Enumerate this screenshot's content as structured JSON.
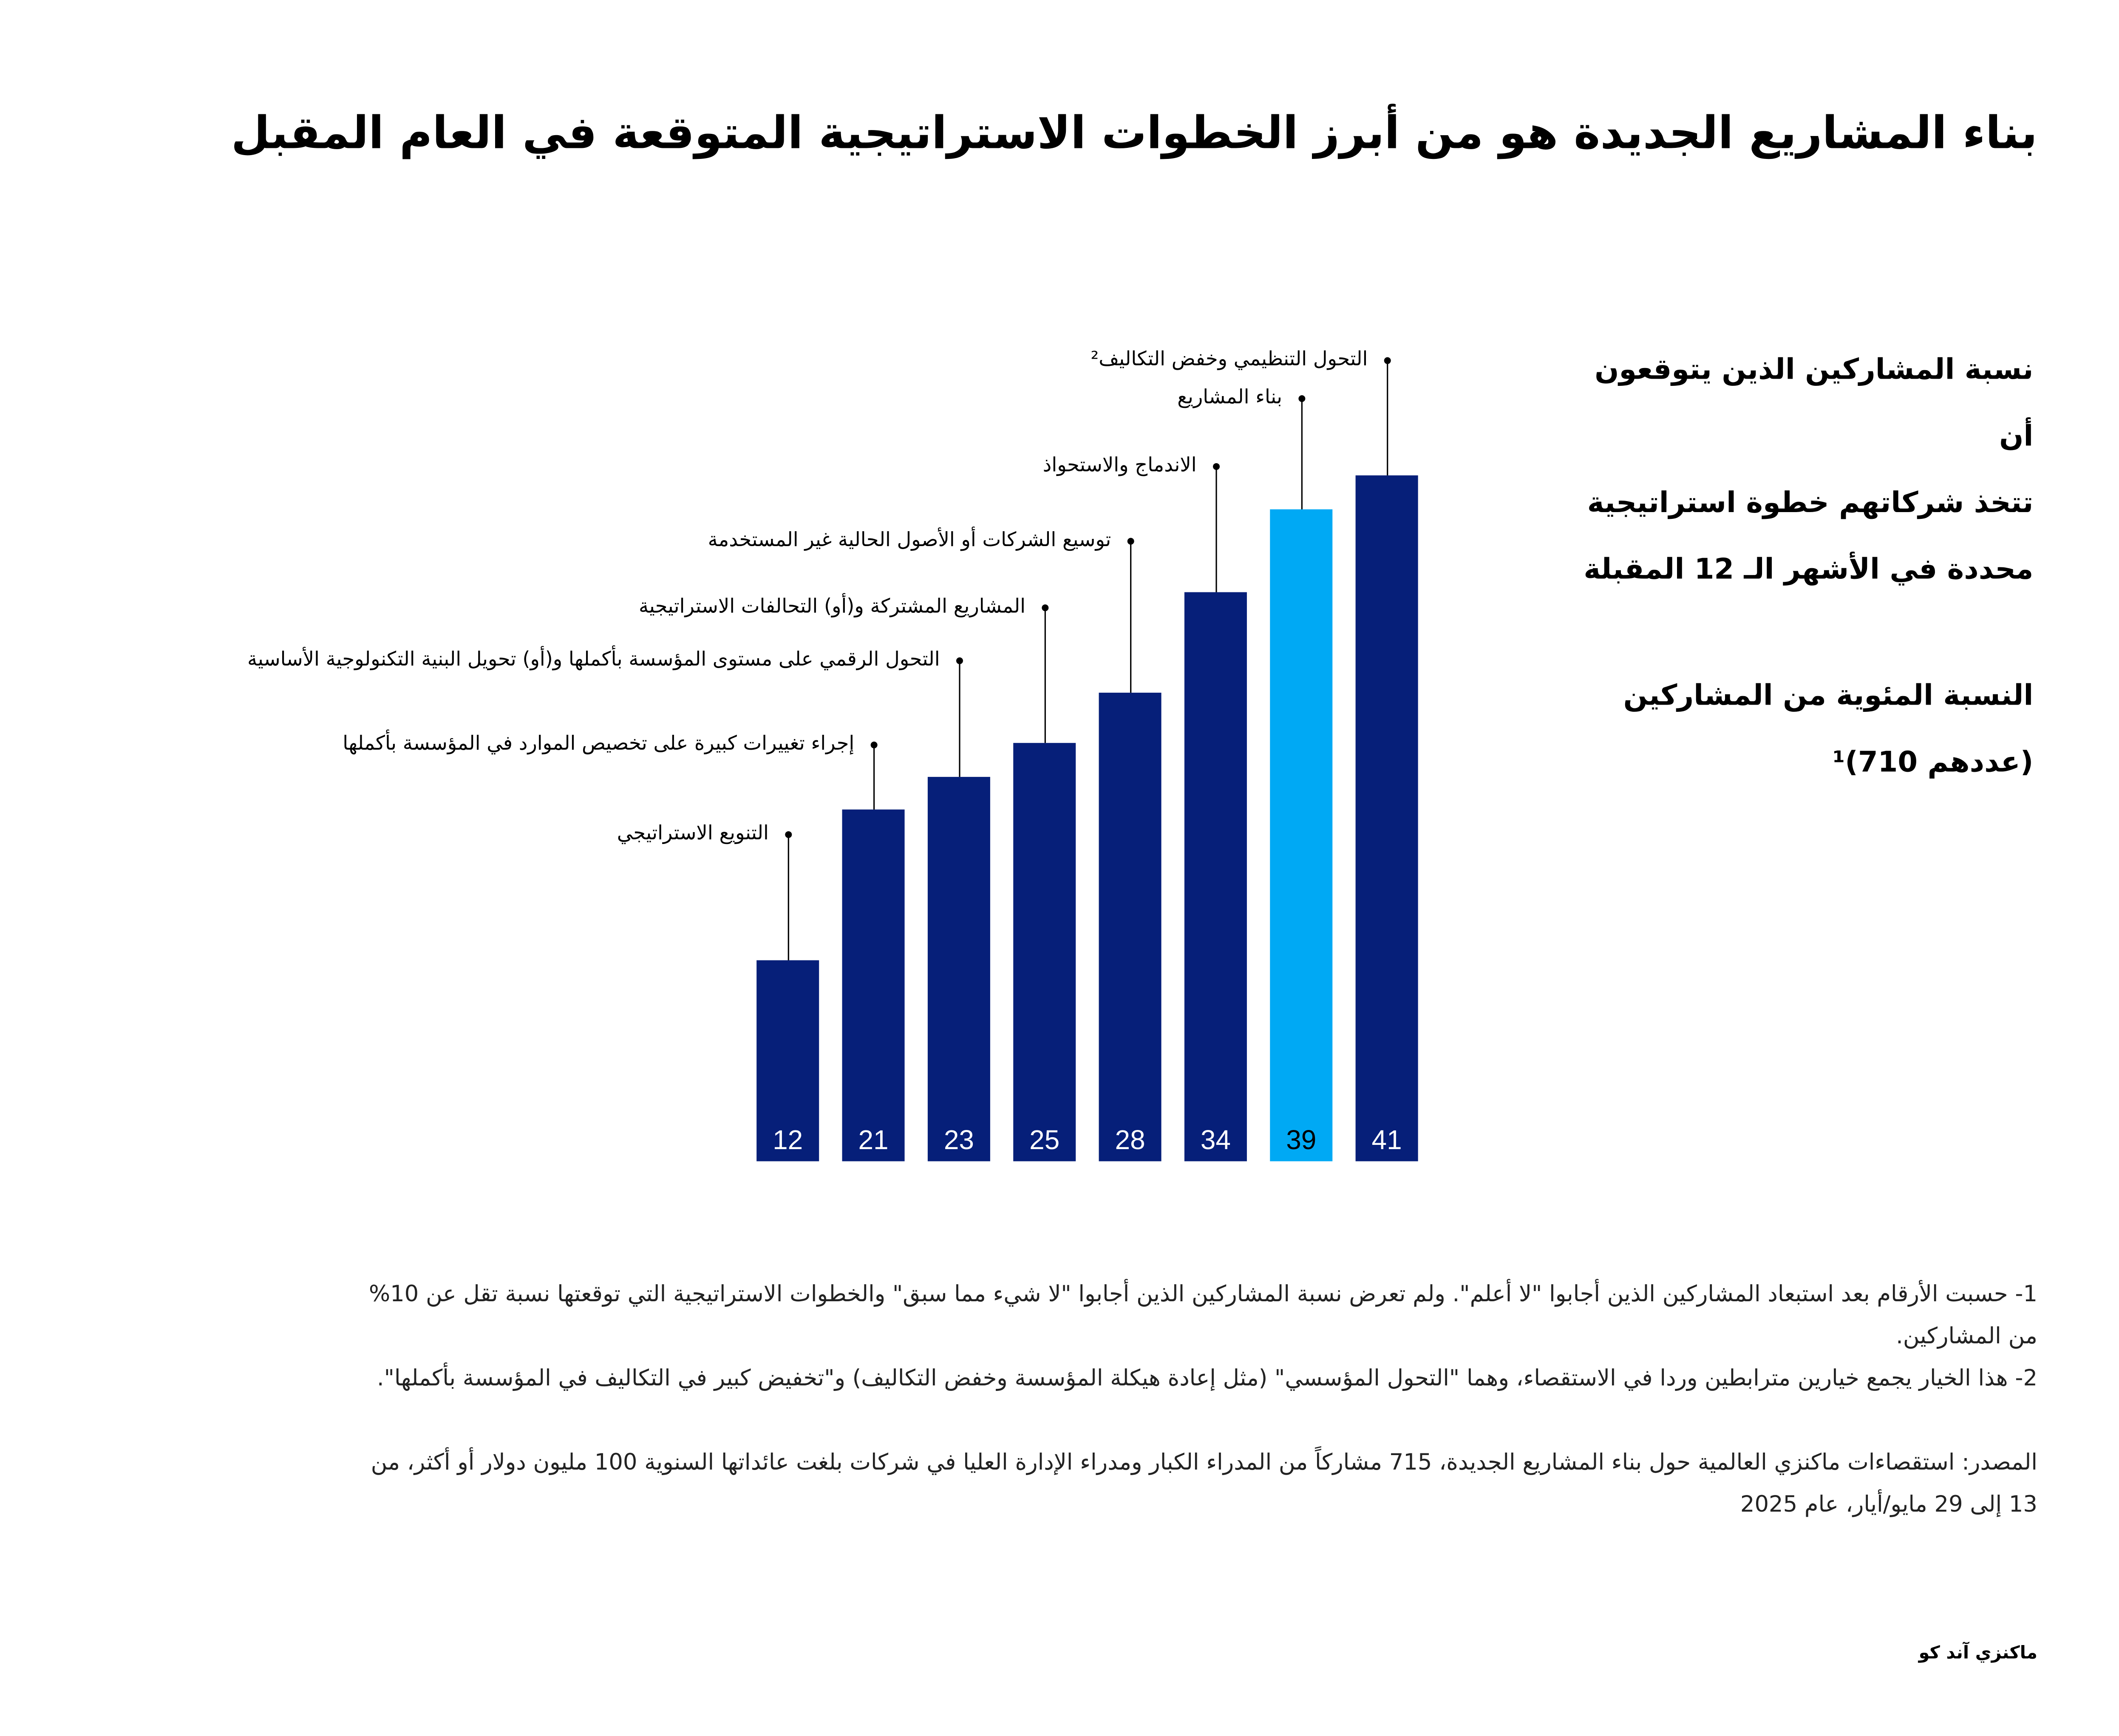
{
  "title": "بناء المشاريع الجديدة هو من أبرز الخطوات الاستراتيجية المتوقعة في العام المقبل",
  "side_text": {
    "lines": [
      "نسبة المشاركين الذين يتوقعون أن",
      "تتخذ شركاتهم خطوة استراتيجية",
      "محددة في الأشهر الـ 12 المقبلة"
    ],
    "unit_lines": [
      "النسبة المئوية من المشاركين",
      "(عددهم 710)¹"
    ]
  },
  "chart_data": {
    "type": "bar",
    "title": "نسبة المشاركين الذين يتوقعون أن تتخذ شركاتهم خطوة استراتيجية محددة في الأشهر الـ 12 المقبلة",
    "ylabel": "النسبة المئوية من المشاركين (عددهم 710)¹",
    "xlabel": "",
    "ylim": [
      0,
      41
    ],
    "grid": false,
    "categories": [
      "التنويع الاستراتيجي",
      "إجراء تغييرات كبيرة على تخصيص الموارد في المؤسسة بأكملها",
      "التحول الرقمي على مستوى المؤسسة بأكملها و(أو) تحويل البنية التكنولوجية الأساسية",
      "المشاريع المشتركة و(أو) التحالفات الاستراتيجية",
      "توسيع الشركات أو الأصول الحالية غير المستخدمة",
      "الاندماج والاستحواذ",
      "بناء المشاريع",
      "التحول التنظيمي وخفض التكاليف²"
    ],
    "values": [
      12,
      21,
      23,
      25,
      28,
      34,
      39,
      41
    ],
    "highlight_index": 6,
    "colors": {
      "default": "#061f79",
      "highlight": "#00a9f4"
    }
  },
  "notes": [
    "1- حسبت الأرقام بعد استبعاد المشاركين الذين أجابوا \"لا أعلم\". ولم تعرض نسبة المشاركين الذين أجابوا \"لا شيء مما سبق\" والخطوات الاستراتيجية التي توقعتها نسبة تقل عن 10% من المشاركين.",
    "2- هذا الخيار يجمع خيارين مترابطين وردا في الاستقصاء، وهما \"التحول المؤسسي\" (مثل إعادة هيكلة المؤسسة وخفض التكاليف) و\"تخفيض كبير في التكاليف في المؤسسة بأكملها\"."
  ],
  "source": "المصدر: استقصاءات ماكنزي العالمية حول بناء المشاريع الجديدة، 715 مشاركاً من المدراء الكبار ومدراء الإدارة العليا في شركات بلغت عائداتها السنوية 100 مليون دولار أو أكثر، من 13 إلى 29 مايو/أيار، عام 2025",
  "logo": "ماكنزي آند كو"
}
